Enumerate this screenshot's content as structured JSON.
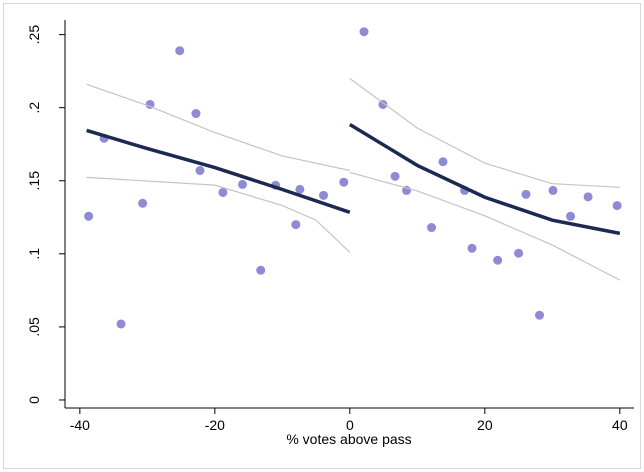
{
  "chart_data": {
    "type": "scatter",
    "x_label": "% votes above pass",
    "xlim": [
      -42.2,
      42.1
    ],
    "ylim": [
      -0.0055,
      0.26
    ],
    "xticks": [
      -40,
      -20,
      0,
      20,
      40
    ],
    "yticks": [
      0,
      {
        "value": 0.05,
        "label": ".05"
      },
      {
        "value": 0.1,
        "label": ".1"
      },
      {
        "value": 0.15,
        "label": ".15"
      },
      {
        "value": 0.2,
        "label": ".2"
      },
      {
        "value": 0.25,
        "label": ".25"
      }
    ],
    "series": [
      {
        "type": "scatter",
        "color": "#8e8ad6",
        "x": [
          -38.7,
          -36.4,
          -33.9,
          -30.7,
          -29.6,
          -25.2,
          -22.8,
          -22.2,
          -18.8,
          -15.9,
          -13.2,
          -11.0,
          -8.0,
          -7.4,
          -3.9,
          -0.9,
          2.1,
          4.9,
          6.7,
          8.4,
          12.1,
          13.8,
          17.0,
          18.1,
          21.9,
          25.0,
          26.1,
          28.1,
          30.1,
          32.7,
          35.3,
          39.6
        ],
        "values": [
          0.1257,
          0.179,
          0.052,
          0.1346,
          0.2022,
          0.239,
          0.196,
          0.157,
          0.142,
          0.1475,
          0.0888,
          0.1469,
          0.12,
          0.1441,
          0.14,
          0.149,
          0.252,
          0.2022,
          0.153,
          0.1434,
          0.118,
          0.163,
          0.1434,
          0.1038,
          0.0956,
          0.1004,
          0.1407,
          0.058,
          0.1434,
          0.1257,
          0.139,
          0.133
        ]
      },
      {
        "type": "line",
        "color": "#c4c4c4",
        "width": 1.2,
        "x": [
          -39,
          -30,
          -20,
          -10,
          0
        ],
        "values": [
          0.216,
          0.2015,
          0.183,
          0.167,
          0.157
        ]
      },
      {
        "type": "line",
        "color": "#c4c4c4",
        "width": 1.2,
        "x": [
          -39,
          -20,
          -10,
          -5,
          0
        ],
        "values": [
          0.1523,
          0.147,
          0.133,
          0.123,
          0.101
        ]
      },
      {
        "type": "line",
        "color": "#c4c4c4",
        "width": 1.2,
        "x": [
          0,
          10,
          20,
          30,
          40
        ],
        "values": [
          0.22,
          0.186,
          0.162,
          0.148,
          0.1455
        ]
      },
      {
        "type": "line",
        "color": "#c4c4c4",
        "width": 1.2,
        "x": [
          0,
          10,
          20,
          30,
          40
        ],
        "values": [
          0.1557,
          0.143,
          0.126,
          0.106,
          0.082
        ]
      },
      {
        "type": "line",
        "color": "#1b2a52",
        "width": 3.5,
        "x": [
          -39,
          -30,
          -20,
          -10,
          0
        ],
        "values": [
          0.1844,
          0.172,
          0.159,
          0.144,
          0.1284
        ]
      },
      {
        "type": "line",
        "color": "#1b2a52",
        "width": 3.5,
        "x": [
          0,
          10,
          20,
          30,
          40
        ],
        "values": [
          0.1885,
          0.1605,
          0.1387,
          0.123,
          0.114
        ]
      }
    ]
  }
}
